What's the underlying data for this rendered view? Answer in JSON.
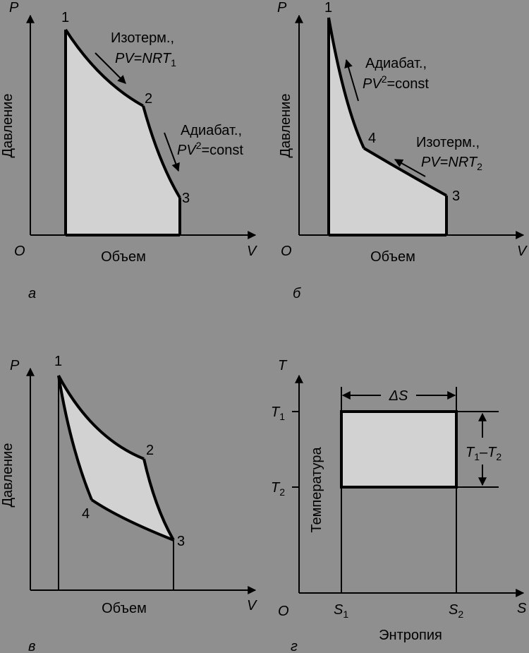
{
  "panel_a": {
    "tag": "а",
    "axis_y": "P",
    "axis_x": "V",
    "origin": "O",
    "ylabel": "Давление",
    "xlabel": "Объем",
    "points": [
      "1",
      "2",
      "3"
    ],
    "isotherm_label": "Изотерм.,",
    "isotherm_formula": {
      "pv": "PV",
      "eq": "=",
      "nrt": "NRT",
      "sub": "1"
    },
    "adiabat_label": "Адиабат.,",
    "adiabat_formula": {
      "pv": "PV",
      "exp": "2",
      "rest": "=const"
    }
  },
  "panel_b": {
    "tag": "б",
    "axis_y": "P",
    "axis_x": "V",
    "origin": "O",
    "ylabel": "Давление",
    "xlabel": "Объем",
    "points": [
      "1",
      "4",
      "3"
    ],
    "adiabat_label": "Адиабат.,",
    "adiabat_formula": {
      "pv": "PV",
      "exp": "2",
      "rest": "=const"
    },
    "isotherm_label": "Изотерм.,",
    "isotherm_formula": {
      "pv": "PV",
      "eq": "=",
      "nrt": "NRT",
      "sub": "2"
    }
  },
  "panel_c": {
    "tag": "в",
    "axis_y": "P",
    "axis_x": "V",
    "ylabel": "Давление",
    "xlabel": "Объем",
    "points": [
      "1",
      "2",
      "4",
      "3"
    ]
  },
  "panel_d": {
    "tag": "г",
    "axis_y": "T",
    "axis_x": "S",
    "origin": "O",
    "ylabel": "Температура",
    "xlabel": "Энтропия",
    "t_upper": {
      "base": "T",
      "sub": "1"
    },
    "t_lower": {
      "base": "T",
      "sub": "2"
    },
    "s_left": {
      "base": "S",
      "sub": "1"
    },
    "s_right": {
      "base": "S",
      "sub": "2"
    },
    "delta_s": "ΔS",
    "t_diff": {
      "a": "T",
      "asub": "1",
      "dash": "–",
      "b": "T",
      "bsub": "2"
    }
  }
}
